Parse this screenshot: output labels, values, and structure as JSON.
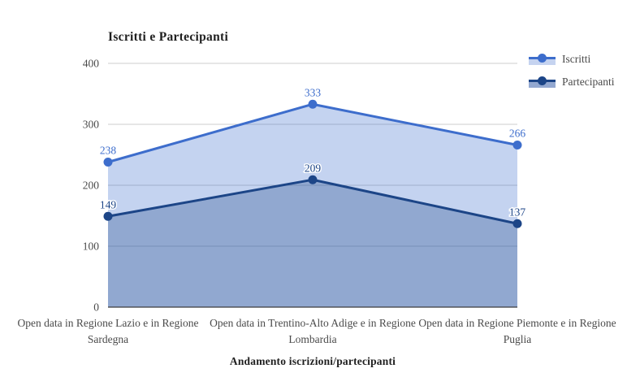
{
  "chart": {
    "title": "Iscritti e Partecipanti",
    "axis_title": "Andamento iscrizioni/partecipanti"
  },
  "chart_data": {
    "type": "area",
    "categories": [
      "Open data in Regione Lazio e in Regione Sardegna",
      "Open data in Trentino-Alto Adige e in Regione Lombardia",
      "Open data in Regione Piemonte e in Regione Puglia"
    ],
    "series": [
      {
        "name": "Iscritti",
        "values": [
          238,
          333,
          266
        ],
        "color": "#3d6dcc",
        "fill": "rgba(61,109,204,0.3)",
        "swatch_fill": "#c5d3f0"
      },
      {
        "name": "Partecipanti",
        "values": [
          149,
          209,
          137
        ],
        "color": "#1c4587",
        "fill": "rgba(28,69,135,0.3)",
        "swatch_fill": "#93a8d0"
      }
    ],
    "title": "Iscritti e Partecipanti",
    "xlabel": "Andamento iscrizioni/partecipanti",
    "ylabel": "",
    "ylim": [
      0,
      400
    ],
    "yticks": [
      0,
      100,
      200,
      300,
      400
    ],
    "grid": true,
    "legend_position": "top-right",
    "point_labels": true
  }
}
